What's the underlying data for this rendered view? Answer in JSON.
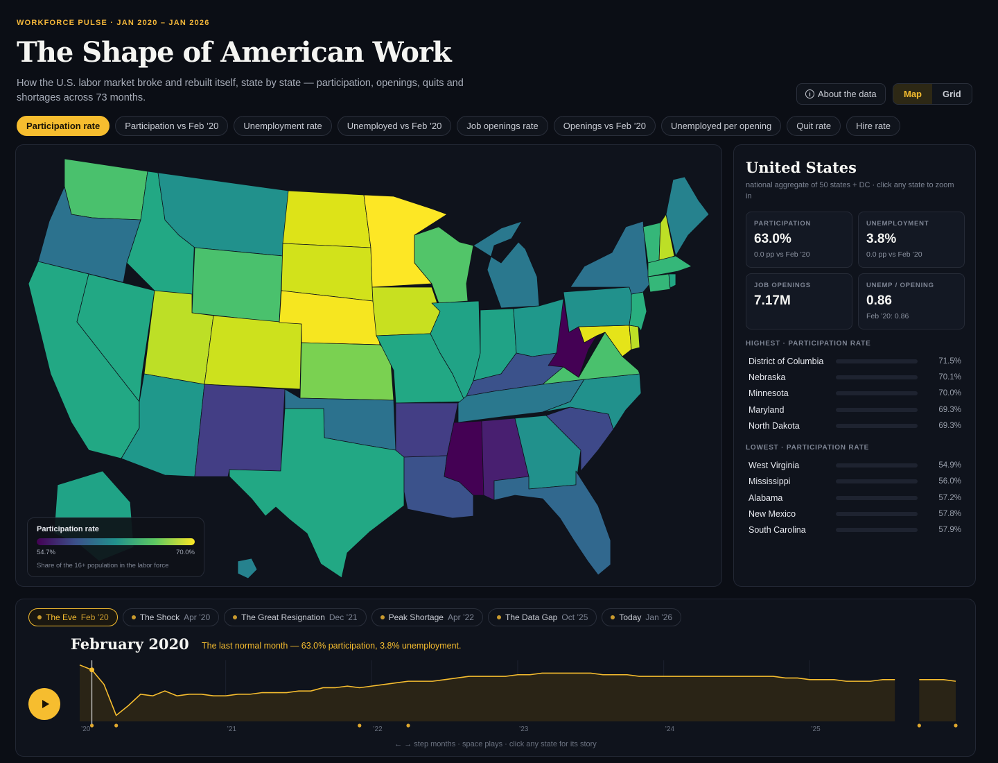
{
  "header": {
    "kicker": "WORKFORCE PULSE · JAN 2020 – JAN 2026",
    "title": "The Shape of American Work",
    "subtitle": "How the U.S. labor market broke and rebuilt itself, state by state — participation, openings, quits and shortages across 73 months.",
    "about_label": "About the data",
    "view_toggle": [
      "Map",
      "Grid"
    ],
    "active_view": "Map"
  },
  "metric_tabs": [
    "Participation rate",
    "Participation vs Feb ’20",
    "Unemployment rate",
    "Unemployed vs Feb ’20",
    "Job openings rate",
    "Openings vs Feb ’20",
    "Unemployed per opening",
    "Quit rate",
    "Hire rate"
  ],
  "active_metric": "Participation rate",
  "map": {
    "legend_title": "Participation rate",
    "legend_min": "54.7%",
    "legend_max": "70.0%",
    "legend_note": "Share of the 16+ population in the labor force",
    "colors": {
      "low": "#440154",
      "mid": "#21918c",
      "high": "#fde725"
    }
  },
  "side": {
    "title": "United States",
    "note": "national aggregate of 50 states + DC · click any state to zoom in",
    "cards": [
      {
        "label": "PARTICIPATION",
        "value": "63.0%",
        "sub": "0.0 pp vs Feb ’20"
      },
      {
        "label": "UNEMPLOYMENT",
        "value": "3.8%",
        "sub": "0.0 pp vs Feb ’20"
      },
      {
        "label": "JOB OPENINGS",
        "value": "7.17M",
        "sub": ""
      },
      {
        "label": "UNEMP / OPENING",
        "value": "0.86",
        "sub": "Feb ’20: 0.86"
      }
    ],
    "highest_label": "HIGHEST · PARTICIPATION RATE",
    "highest": [
      {
        "name": "District of Columbia",
        "value": "71.5%"
      },
      {
        "name": "Nebraska",
        "value": "70.1%"
      },
      {
        "name": "Minnesota",
        "value": "70.0%"
      },
      {
        "name": "Maryland",
        "value": "69.3%"
      },
      {
        "name": "North Dakota",
        "value": "69.3%"
      }
    ],
    "lowest_label": "LOWEST · PARTICIPATION RATE",
    "lowest": [
      {
        "name": "West Virginia",
        "value": "54.9%"
      },
      {
        "name": "Mississippi",
        "value": "56.0%"
      },
      {
        "name": "Alabama",
        "value": "57.2%"
      },
      {
        "name": "New Mexico",
        "value": "57.8%"
      },
      {
        "name": "South Carolina",
        "value": "57.9%"
      }
    ]
  },
  "timeline": {
    "chapters": [
      {
        "name": "The Eve",
        "date": "Feb ’20"
      },
      {
        "name": "The Shock",
        "date": "Apr ’20"
      },
      {
        "name": "The Great Resignation",
        "date": "Dec ’21"
      },
      {
        "name": "Peak Shortage",
        "date": "Apr ’22"
      },
      {
        "name": "The Data Gap",
        "date": "Oct ’25"
      },
      {
        "name": "Today",
        "date": "Jan ’26"
      }
    ],
    "active_chapter": "The Eve",
    "month_title": "February 2020",
    "month_story": "The last normal month — 63.0% participation, 3.8% unemployment.",
    "hint": "← → step months · space plays · click any state for its story",
    "accent": "#f6bd2f"
  },
  "chart_data": {
    "type": "area",
    "x_tick_labels": [
      "’20",
      "’21",
      "’22",
      "’23",
      "’24",
      "’25"
    ],
    "y": [
      63.3,
      63.0,
      62.1,
      60.2,
      60.8,
      61.5,
      61.4,
      61.7,
      61.4,
      61.5,
      61.5,
      61.4,
      61.4,
      61.5,
      61.5,
      61.6,
      61.6,
      61.6,
      61.7,
      61.7,
      61.9,
      61.9,
      62.0,
      61.9,
      62.0,
      62.1,
      62.2,
      62.3,
      62.3,
      62.3,
      62.4,
      62.5,
      62.6,
      62.6,
      62.6,
      62.6,
      62.7,
      62.7,
      62.8,
      62.8,
      62.8,
      62.8,
      62.8,
      62.7,
      62.7,
      62.7,
      62.6,
      62.6,
      62.6,
      62.6,
      62.6,
      62.6,
      62.6,
      62.6,
      62.6,
      62.6,
      62.6,
      62.6,
      62.5,
      62.5,
      62.4,
      62.4,
      62.4,
      62.3,
      62.3,
      62.3,
      62.4,
      62.4,
      null,
      62.4,
      62.4,
      62.4,
      62.3
    ],
    "gap_months": 1,
    "current_index": 1
  }
}
